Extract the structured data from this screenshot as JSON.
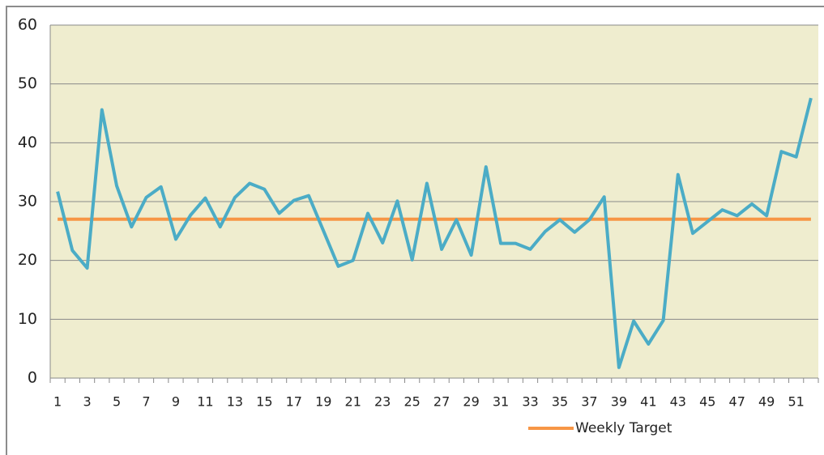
{
  "chart_data": {
    "type": "line",
    "categories": [
      1,
      null,
      3,
      null,
      5,
      null,
      7,
      null,
      9,
      null,
      11,
      null,
      13,
      null,
      15,
      null,
      17,
      null,
      19,
      null,
      21,
      null,
      23,
      null,
      25,
      null,
      27,
      null,
      29,
      null,
      31,
      null,
      33,
      null,
      35,
      null,
      37,
      null,
      39,
      null,
      41,
      null,
      43,
      null,
      45,
      null,
      47,
      null,
      49,
      null,
      51,
      null
    ],
    "series": [
      {
        "color": "#4bacc6",
        "values": [
          31.7,
          21.7,
          18.7,
          45.6,
          32.7,
          25.7,
          30.7,
          32.5,
          23.6,
          27.7,
          30.6,
          25.7,
          30.7,
          33.1,
          32.1,
          28.0,
          30.2,
          31.0,
          25.0,
          19.0,
          20.0,
          28.0,
          23.0,
          30.1,
          20.1,
          33.1,
          21.9,
          26.9,
          20.9,
          35.9,
          22.9,
          22.9,
          21.9,
          24.9,
          26.9,
          24.8,
          26.9,
          30.8,
          1.8,
          9.7,
          5.8,
          9.8,
          34.6,
          24.6,
          26.6,
          28.6,
          27.6,
          29.6,
          27.6,
          38.5,
          37.6,
          47.6
        ]
      },
      {
        "name": "Weekly Target",
        "color": "#f79646",
        "values": [
          27,
          27,
          27,
          27,
          27,
          27,
          27,
          27,
          27,
          27,
          27,
          27,
          27,
          27,
          27,
          27,
          27,
          27,
          27,
          27,
          27,
          27,
          27,
          27,
          27,
          27,
          27,
          27,
          27,
          27,
          27,
          27,
          27,
          27,
          27,
          27,
          27,
          27,
          27,
          27,
          27,
          27,
          27,
          27,
          27,
          27,
          27,
          27,
          27,
          27,
          27,
          27
        ]
      }
    ],
    "ylim": [
      0,
      60
    ],
    "yticks": [
      0,
      10,
      20,
      30,
      40,
      50,
      60
    ],
    "grid": true,
    "plot_background": "#efedcf",
    "legend": "bottom"
  }
}
